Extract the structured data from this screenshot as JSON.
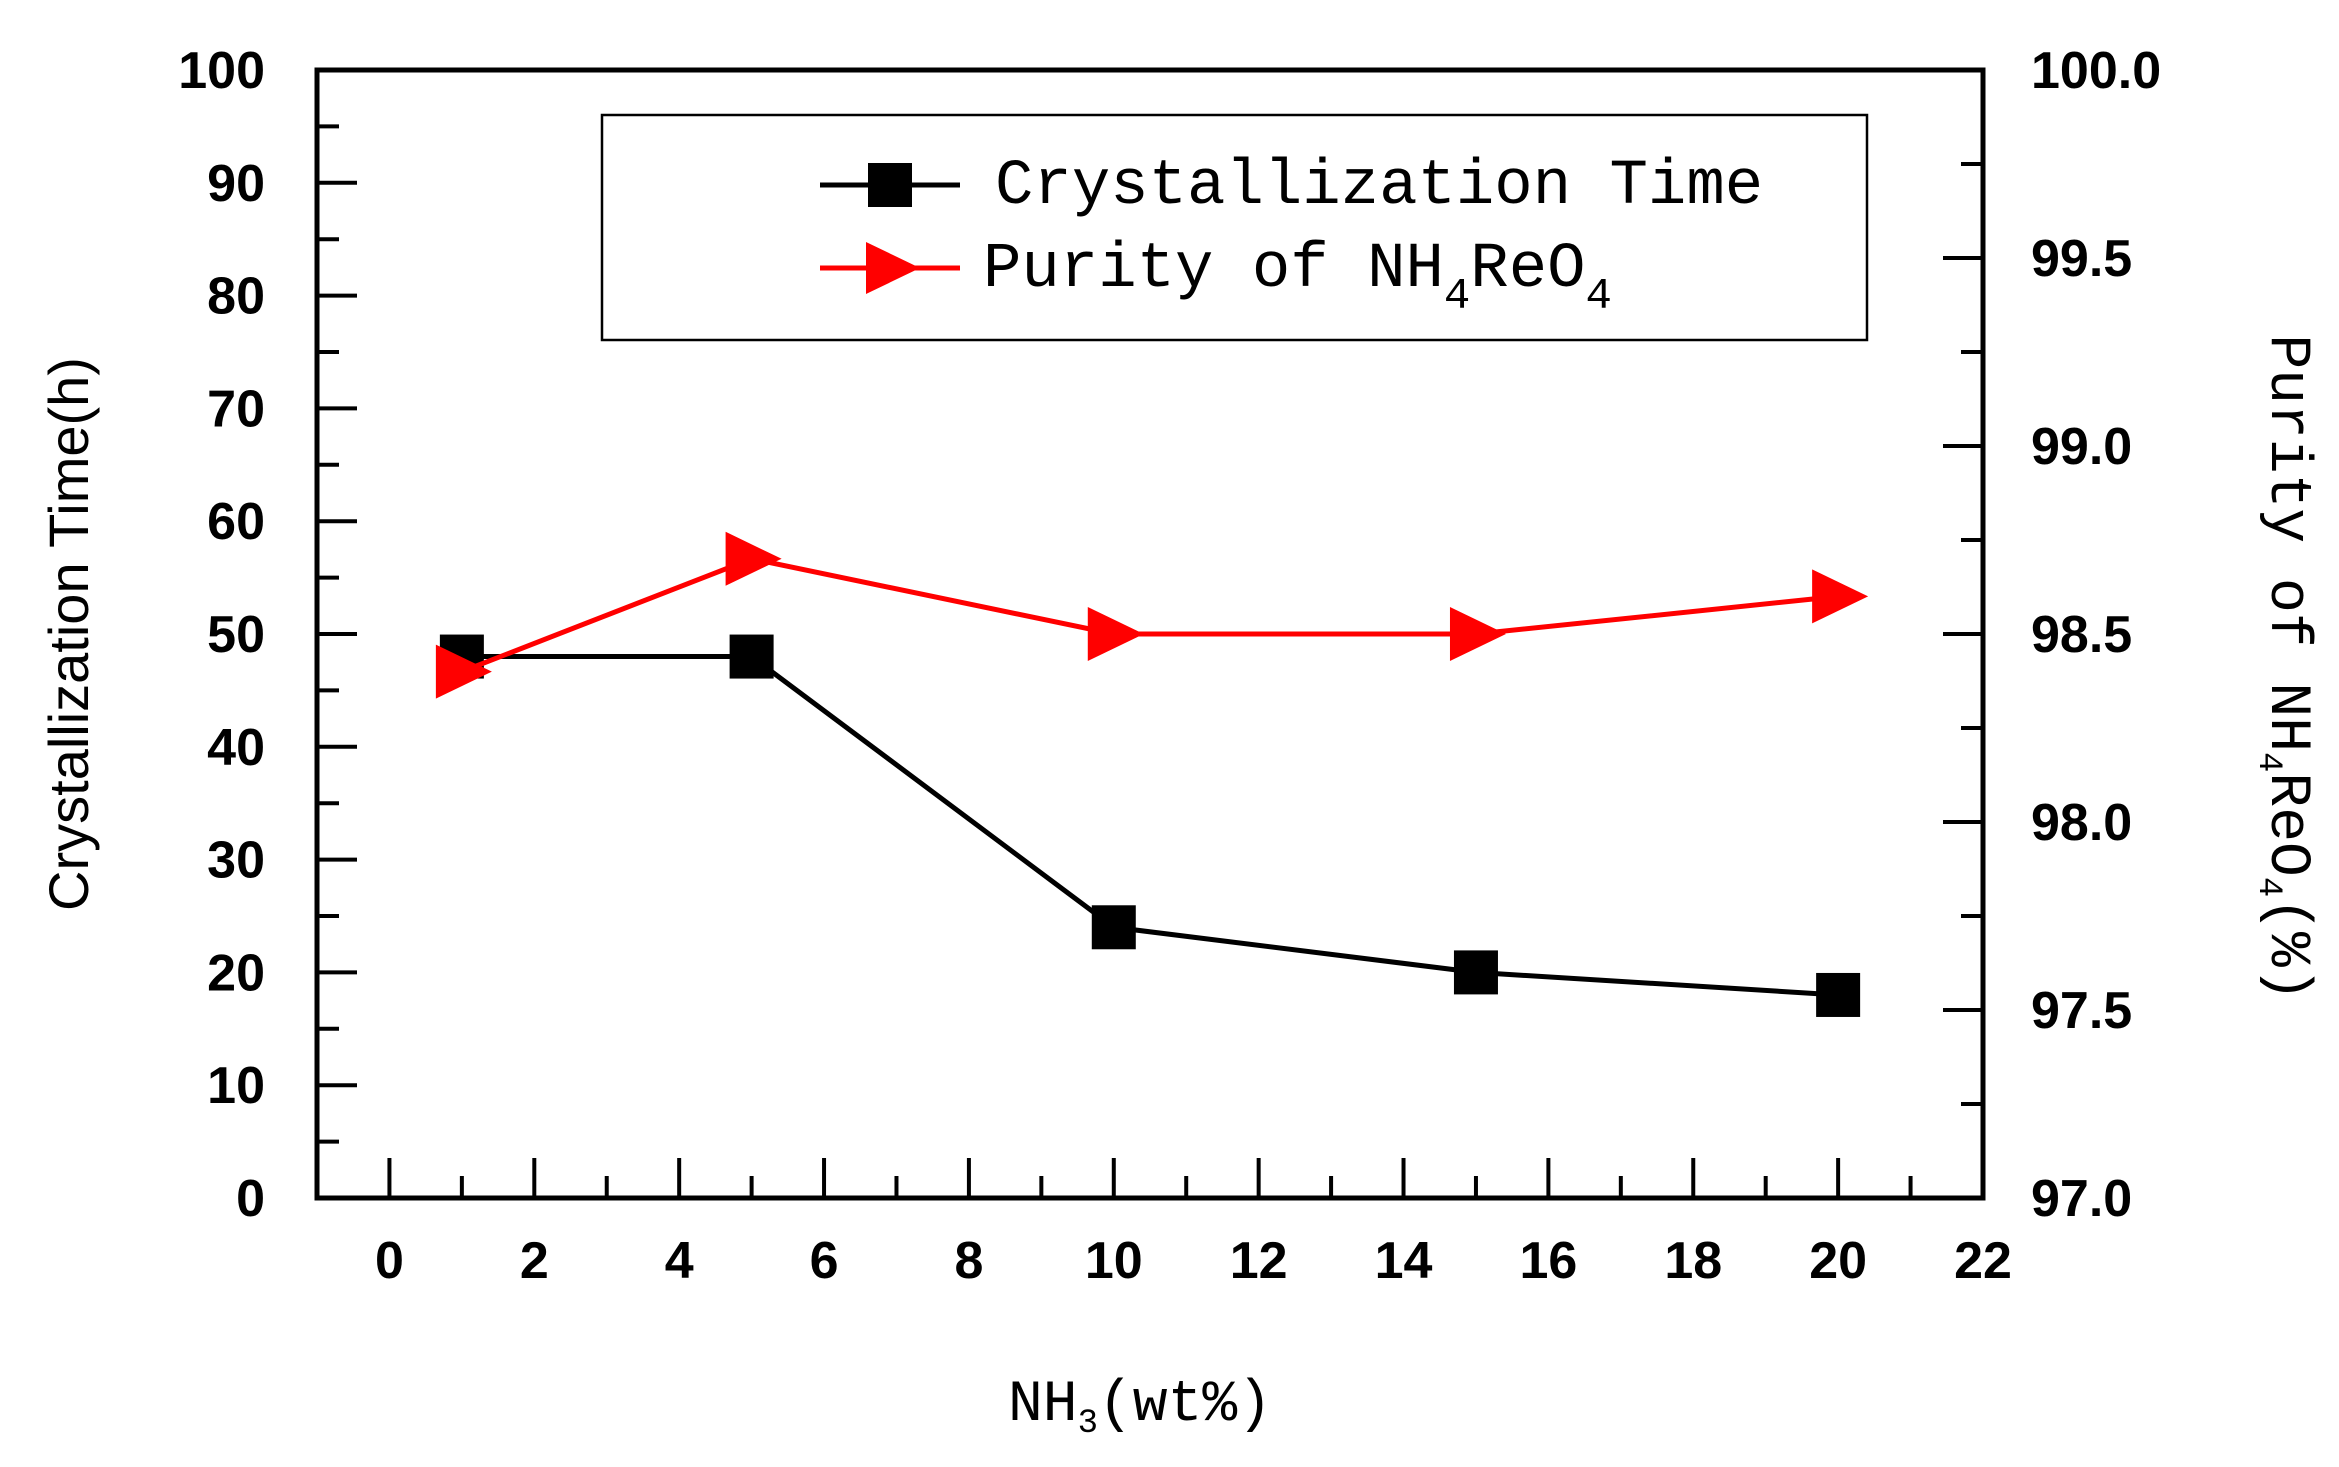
{
  "chart_data": {
    "type": "line",
    "x": [
      1,
      5,
      10,
      15,
      20
    ],
    "series": [
      {
        "name": "Crystallization Time",
        "axis": "left",
        "color": "#000000",
        "marker": "square",
        "values": [
          48,
          48,
          24,
          20,
          18
        ]
      },
      {
        "name": "Purity of NH4ReO4",
        "axis": "right",
        "color": "#ff0000",
        "marker": "triangle-right",
        "values": [
          98.4,
          98.7,
          98.5,
          98.5,
          98.6
        ]
      }
    ],
    "xlabel": {
      "main": "NH",
      "sub": "3",
      "tail": "(wt%)"
    },
    "ylabel_left": "Crystallization Time(h)",
    "ylabel_right": {
      "main": "Purity of NH",
      "sub": "4",
      "mid": "ReO",
      "sub2": "4",
      "tail": "(%)"
    },
    "legend": [
      {
        "label": "Crystallization Time"
      },
      {
        "label_main": "Purity of NH",
        "sub": "4",
        "mid": "ReO",
        "sub2": "4"
      }
    ],
    "xlim": [
      -1,
      22
    ],
    "ylim_left": [
      0,
      100
    ],
    "ylim_right": [
      97.0,
      100.0
    ],
    "x_ticks": [
      "0",
      "2",
      "4",
      "6",
      "8",
      "10",
      "12",
      "14",
      "16",
      "18",
      "20",
      "22"
    ],
    "y_left_ticks": [
      "0",
      "10",
      "20",
      "30",
      "40",
      "50",
      "60",
      "70",
      "80",
      "90",
      "100"
    ],
    "y_right_ticks": [
      "97.0",
      "97.5",
      "98.0",
      "98.5",
      "99.0",
      "99.5",
      "100.0"
    ],
    "legend_position": "top-right"
  }
}
